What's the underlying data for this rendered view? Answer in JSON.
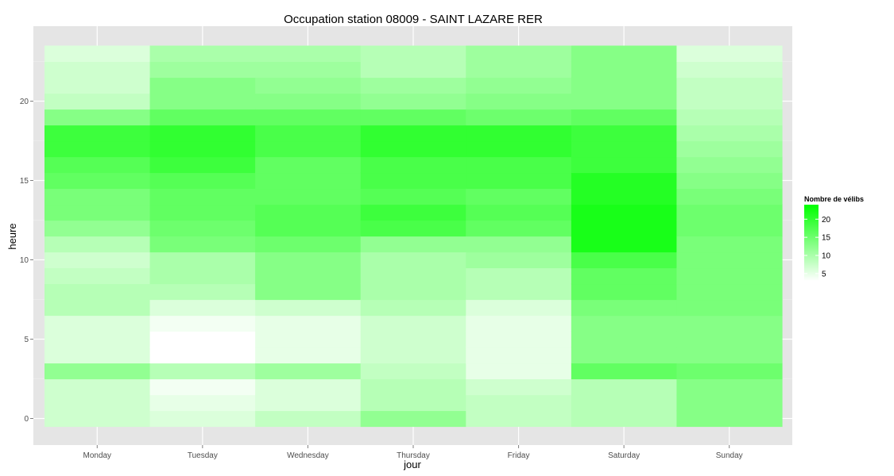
{
  "chart_data": {
    "type": "heatmap",
    "title": "Occupation station 08009 - SAINT LAZARE RER",
    "xlabel": "jour",
    "ylabel": "heure",
    "x_categories": [
      "Monday",
      "Tuesday",
      "Wednesday",
      "Thursday",
      "Friday",
      "Saturday",
      "Sunday"
    ],
    "y_hours": [
      0,
      1,
      2,
      3,
      4,
      5,
      6,
      7,
      8,
      9,
      10,
      11,
      12,
      13,
      14,
      15,
      16,
      17,
      18,
      19,
      20,
      21,
      22,
      23
    ],
    "y_ticks": [
      0,
      5,
      10,
      15,
      20
    ],
    "grid": true,
    "color_low": "#ffffff",
    "color_high": "#00ff00",
    "panel_background": "#e5e5e5",
    "legend": {
      "title": "Nombre de vélibs",
      "position": "right",
      "min": 3,
      "max": 24,
      "breaks": [
        5,
        10,
        15,
        20
      ]
    },
    "values": [
      [
        7,
        7,
        7,
        12,
        6,
        6,
        6,
        9,
        9,
        8,
        7,
        9,
        12,
        14,
        14,
        16,
        17,
        19,
        19,
        13,
        8,
        7,
        7,
        6
      ],
      [
        6,
        5,
        4,
        9,
        3,
        3,
        4,
        6,
        9,
        10,
        10,
        14,
        15,
        16,
        16,
        17,
        19,
        20,
        20,
        16,
        13,
        13,
        11,
        10
      ],
      [
        8,
        6,
        6,
        11,
        5,
        5,
        5,
        7,
        13,
        13,
        13,
        15,
        17,
        17,
        16,
        16,
        16,
        18,
        18,
        16,
        13,
        12,
        11,
        10
      ],
      [
        12,
        9,
        9,
        8,
        7,
        7,
        7,
        9,
        10,
        10,
        10,
        12,
        18,
        19,
        17,
        18,
        18,
        20,
        20,
        16,
        12,
        11,
        9,
        9
      ],
      [
        8,
        8,
        7,
        5,
        5,
        5,
        5,
        6,
        9,
        9,
        11,
        12,
        16,
        17,
        16,
        18,
        18,
        20,
        20,
        15,
        13,
        12,
        11,
        11
      ],
      [
        9,
        9,
        9,
        16,
        13,
        13,
        13,
        14,
        16,
        16,
        18,
        22,
        22,
        22,
        21,
        21,
        19,
        19,
        19,
        16,
        13,
        13,
        13,
        13
      ],
      [
        13,
        13,
        13,
        15,
        13,
        13,
        13,
        14,
        14,
        14,
        14,
        14,
        15,
        15,
        14,
        13,
        12,
        11,
        10,
        9,
        8,
        8,
        7,
        6
      ]
    ]
  }
}
